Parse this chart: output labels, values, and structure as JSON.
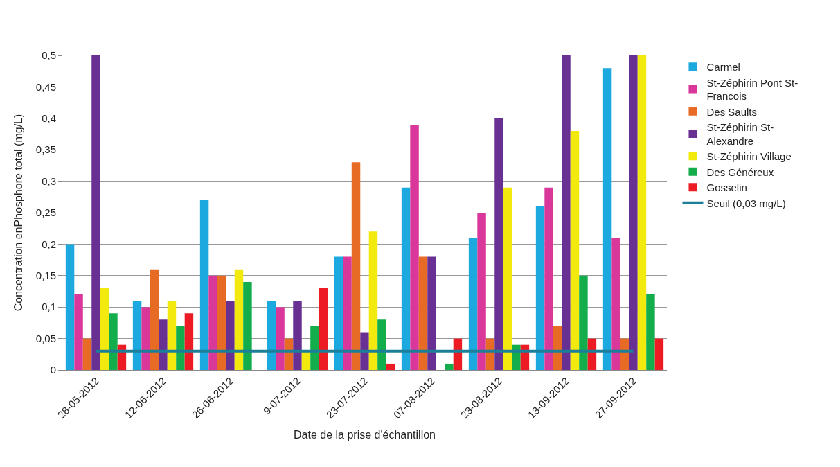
{
  "chart_data": {
    "type": "bar",
    "xlabel": "Date de la prise d'échantillon",
    "ylabel": "Concentration enPhosphore total (mg/L)",
    "categories": [
      "28-05-2012",
      "12-06-2012",
      "26-06-2012",
      "9-07-2012",
      "23-07-2012",
      "07-08-2012",
      "23-08-2012",
      "13-09-2012",
      "27-09-2012"
    ],
    "series": [
      {
        "name": "Carmel",
        "color": "#1ba9e0",
        "values": [
          0.2,
          0.11,
          0.27,
          0.11,
          0.18,
          0.29,
          0.21,
          0.26,
          0.48
        ]
      },
      {
        "name": "St-Zéphirin Pont St-\nFrancois",
        "color": "#d9379a",
        "values": [
          0.12,
          0.1,
          0.15,
          0.1,
          0.18,
          0.39,
          0.25,
          0.29,
          0.21
        ]
      },
      {
        "name": "Des Saults",
        "color": "#e86b25",
        "values": [
          0.05,
          0.16,
          0.15,
          0.05,
          0.33,
          0.18,
          0.05,
          0.07,
          0.05
        ]
      },
      {
        "name": "St-Zéphirin St-\nAlexandre",
        "color": "#673092",
        "values": [
          0.5,
          0.08,
          0.11,
          0.11,
          0.06,
          0.18,
          0.4,
          0.5,
          0.5
        ]
      },
      {
        "name": "St-Zéphirin Village",
        "color": "#f2e90f",
        "values": [
          0.13,
          0.11,
          0.16,
          0.03,
          0.22,
          null,
          0.29,
          0.38,
          0.5
        ]
      },
      {
        "name": "Des Généreux",
        "color": "#14ad4c",
        "values": [
          0.09,
          0.07,
          0.14,
          0.07,
          0.08,
          0.01,
          0.04,
          0.15,
          0.12
        ]
      },
      {
        "name": "Gosselin",
        "color": "#ed1c24",
        "values": [
          0.04,
          0.09,
          null,
          0.13,
          0.01,
          0.05,
          0.04,
          0.05,
          0.05
        ]
      },
      {
        "name": "Seuil (0,03 mg/L)",
        "type": "line",
        "color": "#1b7f99",
        "values": [
          0.03,
          0.03,
          0.03,
          0.03,
          0.03,
          0.03,
          0.03,
          0.03,
          0.03
        ]
      }
    ],
    "ylim": [
      0,
      0.5
    ],
    "yticks": [
      {
        "value": 0,
        "label": "0"
      },
      {
        "value": 0.05,
        "label": "0,05"
      },
      {
        "value": 0.1,
        "label": "0,1"
      },
      {
        "value": 0.15,
        "label": "0,15"
      },
      {
        "value": 0.2,
        "label": "0,2"
      },
      {
        "value": 0.25,
        "label": "0,25"
      },
      {
        "value": 0.3,
        "label": "0,3"
      },
      {
        "value": 0.35,
        "label": "0,35"
      },
      {
        "value": 0.4,
        "label": "0,4"
      },
      {
        "value": 0.45,
        "label": "0,45"
      },
      {
        "value": 0.5,
        "label": "0,5"
      }
    ],
    "grid": "y",
    "legend": "right",
    "marker": "none"
  }
}
